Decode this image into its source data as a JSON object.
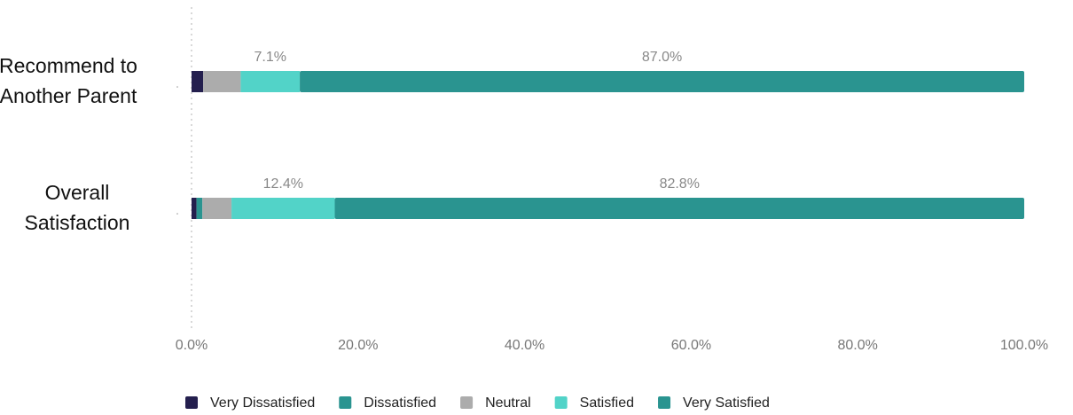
{
  "chart_data": {
    "type": "stacked_barh",
    "categories": [
      "Recommend to Another Parent",
      "Overall Satisfaction"
    ],
    "series": [
      {
        "name": "Very Dissatisfied",
        "color": "#241f4e",
        "values": [
          1.4,
          0.6
        ]
      },
      {
        "name": "Dissatisfied",
        "color": "#2a9490",
        "values": [
          0,
          0.7
        ]
      },
      {
        "name": "Neutral",
        "color": "#acacac",
        "values": [
          4.5,
          3.5
        ]
      },
      {
        "name": "Satisfied",
        "color": "#52d3c8",
        "values": [
          7.1,
          12.4
        ],
        "value_labels": [
          "7.1%",
          "12.4%"
        ]
      },
      {
        "name": "Very Satisfied",
        "color": "#2a9490",
        "values": [
          87.0,
          82.8
        ],
        "value_labels": [
          "87.0%",
          "82.8%"
        ]
      }
    ],
    "xlim": [
      0,
      100
    ],
    "xticks": [
      {
        "value": 0,
        "label": "0.0%"
      },
      {
        "value": 20,
        "label": "20.0%"
      },
      {
        "value": 40,
        "label": "40.0%"
      },
      {
        "value": 60,
        "label": "60.0%"
      },
      {
        "value": 80,
        "label": "80.0%"
      },
      {
        "value": 100,
        "label": "100.0%"
      }
    ],
    "legend": "bottom"
  }
}
